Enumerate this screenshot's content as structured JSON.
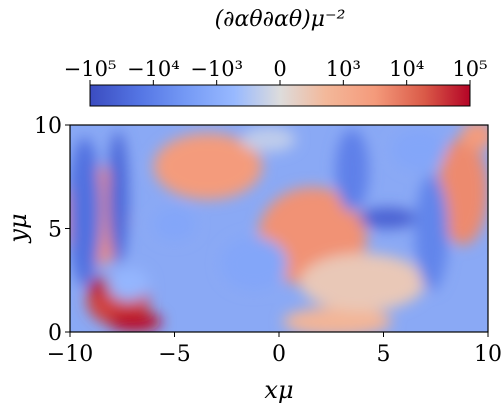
{
  "chart_data": {
    "type": "heatmap",
    "title": "(∂αθ∂αθ)μ⁻²",
    "xlabel": "xμ",
    "ylabel": "yμ",
    "xlim": [
      -10,
      10
    ],
    "ylim": [
      0,
      10
    ],
    "x_ticks": [
      "−10",
      "−5",
      "0",
      "5",
      "10"
    ],
    "y_ticks": [
      "0",
      "5",
      "10"
    ],
    "x_tick_values": [
      -10,
      -5,
      0,
      5,
      10
    ],
    "y_tick_values": [
      0,
      5,
      10
    ],
    "colorbar": {
      "scale": "symlog",
      "range": [
        -100000,
        100000
      ],
      "ticks": [
        "−10⁵",
        "−10⁴",
        "−10³",
        "0",
        "10³",
        "10⁴",
        "10⁵"
      ],
      "tick_values": [
        -100000,
        -10000,
        -1000,
        0,
        1000,
        10000,
        100000
      ],
      "colormap": "coolwarm",
      "placement": "top"
    },
    "colors": {
      "min": "#3b4cc0",
      "mid": "#dddcdc",
      "max": "#b40426"
    },
    "regions": [
      {
        "x": -8.8,
        "y": 5.6,
        "rx": 1.6,
        "ry": 2.4,
        "value": 4000
      },
      {
        "x": -3.4,
        "y": 8.0,
        "rx": 2.6,
        "ry": 1.6,
        "value": 3000
      },
      {
        "x": 1.6,
        "y": 4.6,
        "rx": 2.6,
        "ry": 2.4,
        "value": 4000
      },
      {
        "x": 8.8,
        "y": 6.8,
        "rx": 1.2,
        "ry": 2.6,
        "value": 5000
      },
      {
        "x": 2.8,
        "y": 0.5,
        "rx": 2.6,
        "ry": 0.7,
        "value": 800
      },
      {
        "x": 4.0,
        "y": 2.4,
        "rx": 3.0,
        "ry": 1.4,
        "value": 400
      },
      {
        "x": 9.5,
        "y": 9.5,
        "rx": 0.8,
        "ry": 0.7,
        "value": 3000
      },
      {
        "x": -7.7,
        "y": 1.5,
        "rx": 1.5,
        "ry": 1.2,
        "value": 30000
      },
      {
        "x": -6.9,
        "y": 0.5,
        "rx": 1.3,
        "ry": 0.5,
        "value": 80000
      },
      {
        "x": -8.6,
        "y": 2.2,
        "rx": 0.5,
        "ry": 0.4,
        "value": 90000
      },
      {
        "x": -9.3,
        "y": 5.8,
        "rx": 0.8,
        "ry": 3.6,
        "value": -20000
      },
      {
        "x": -7.7,
        "y": 6.5,
        "rx": 0.5,
        "ry": 3.2,
        "value": -30000
      },
      {
        "x": -1.2,
        "y": 3.3,
        "rx": 1.6,
        "ry": 1.3,
        "value": -1500
      },
      {
        "x": -7.2,
        "y": 2.3,
        "rx": 1.0,
        "ry": 0.8,
        "value": -800
      },
      {
        "x": 3.5,
        "y": 7.8,
        "rx": 0.8,
        "ry": 2.0,
        "value": -10000
      },
      {
        "x": 5.2,
        "y": 5.5,
        "rx": 1.4,
        "ry": 0.5,
        "value": -40000
      },
      {
        "x": 7.3,
        "y": 4.8,
        "rx": 0.8,
        "ry": 2.8,
        "value": -8000
      },
      {
        "x": 6.7,
        "y": 8.8,
        "rx": 1.3,
        "ry": 1.0,
        "value": -1500
      },
      {
        "x": -5.0,
        "y": 5.2,
        "rx": 1.0,
        "ry": 0.8,
        "value": -1500
      },
      {
        "x": -0.5,
        "y": 9.3,
        "rx": 1.3,
        "ry": 0.6,
        "value": -300
      }
    ],
    "grid": false
  }
}
